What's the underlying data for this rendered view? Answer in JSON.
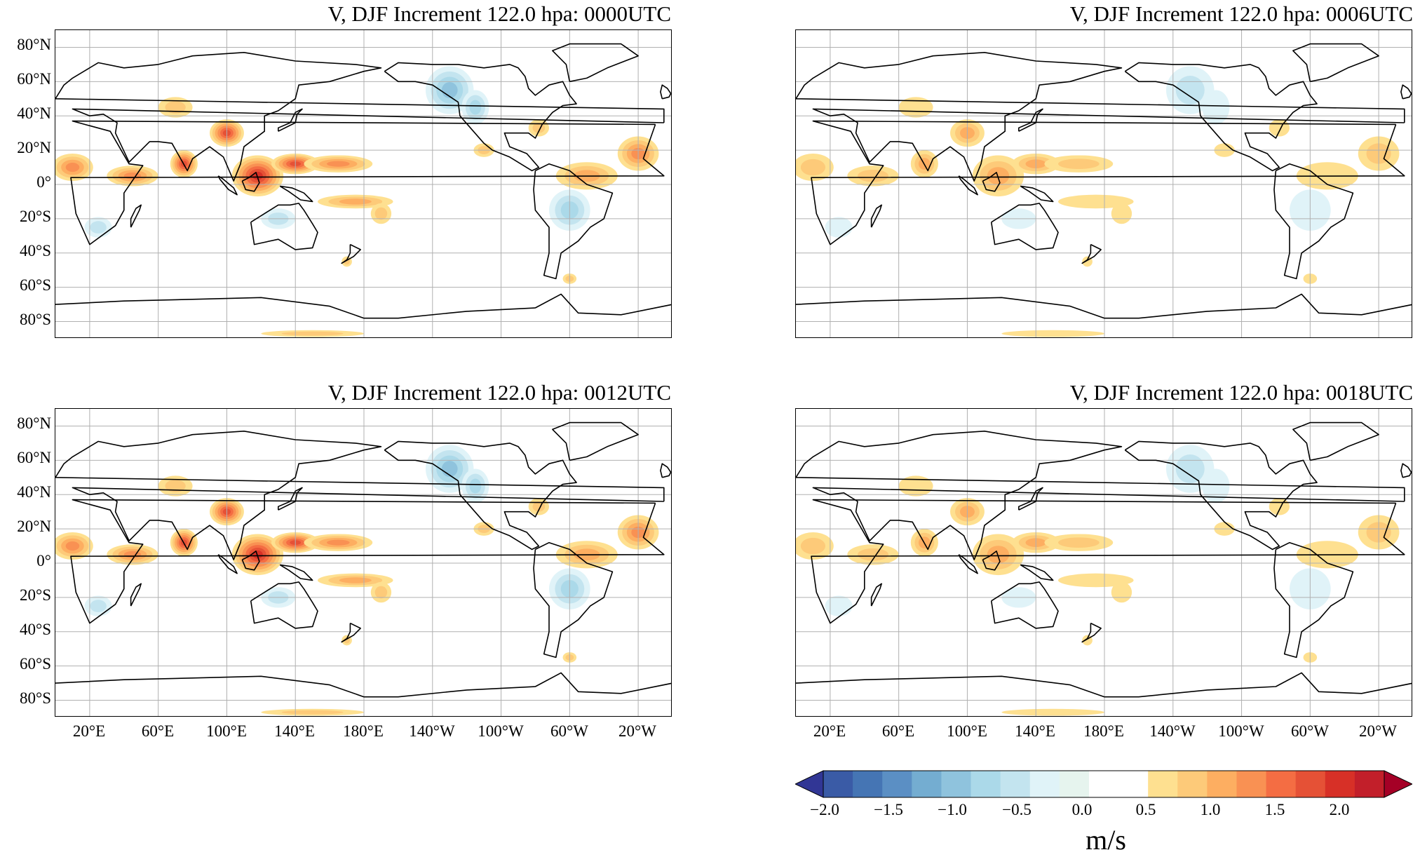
{
  "panels": [
    {
      "title": "V, DJF Increment 122.0 hpa:  0000UTC",
      "intensity": 1.0
    },
    {
      "title": "V, DJF Increment 122.0 hpa:  0006UTC",
      "intensity": 0.45
    },
    {
      "title": "V, DJF Increment 122.0 hpa:  0012UTC",
      "intensity": 1.0
    },
    {
      "title": "V, DJF Increment 122.0 hpa:  0018UTC",
      "intensity": 0.45
    }
  ],
  "lat_ticks": [
    "80°N",
    "60°N",
    "40°N",
    "20°N",
    "0°",
    "20°S",
    "40°S",
    "60°S",
    "80°S"
  ],
  "lon_ticks": [
    "20°E",
    "60°E",
    "100°E",
    "140°E",
    "180°E",
    "140°W",
    "100°W",
    "60°W",
    "20°W"
  ],
  "colorbar": {
    "ticks": [
      "−2.0",
      "−1.5",
      "−1.0",
      "−0.5",
      "0.0",
      "0.5",
      "1.0",
      "1.5",
      "2.0"
    ],
    "unit": "m/s",
    "colors": [
      "#313695",
      "#3a5ba6",
      "#4575b4",
      "#5b8fc4",
      "#74add1",
      "#8fc3dd",
      "#abd9e9",
      "#c3e4ef",
      "#e0f3f8",
      "#e6f4ee",
      "#ffffff",
      "#ffffff",
      "#fee090",
      "#fdca79",
      "#fdae61",
      "#f99153",
      "#f46d43",
      "#e55136",
      "#d73027",
      "#c21f2a",
      "#a50026"
    ]
  }
}
